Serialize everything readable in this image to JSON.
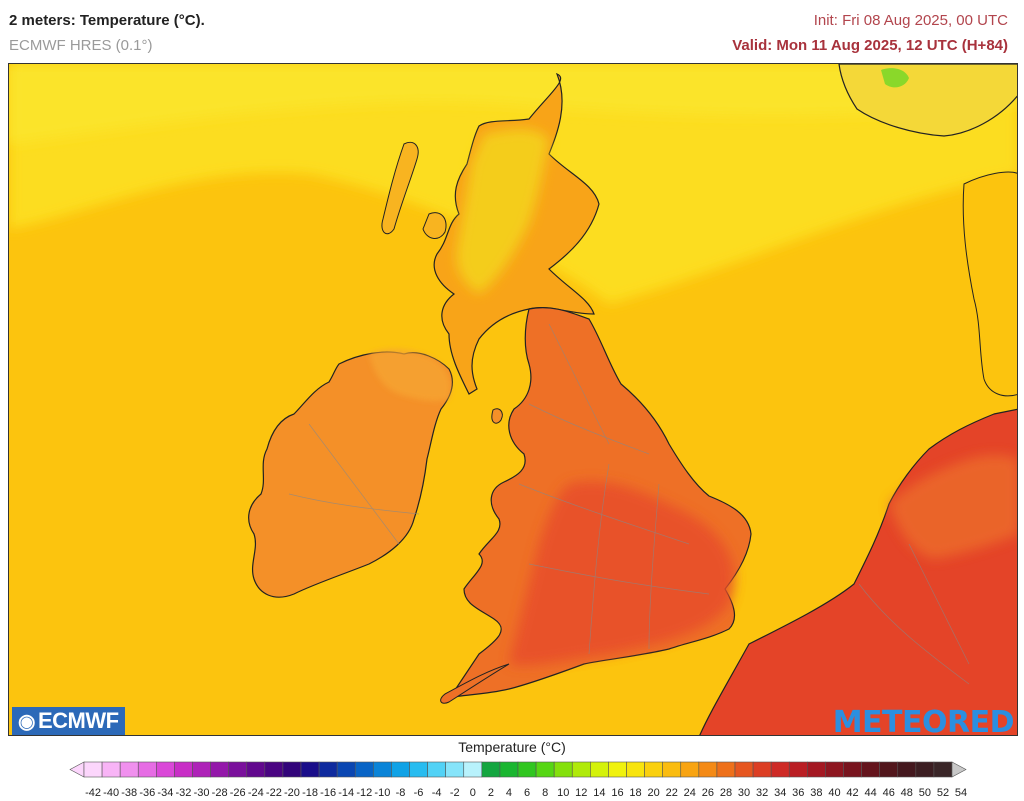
{
  "header": {
    "title": "2 meters: Temperature (°C).",
    "model": "ECMWF HRES (0.1°)",
    "init": "Init: Fri 08 Aug 2025, 00 UTC",
    "valid": "Valid: Mon 11 Aug 2025, 12 UTC (H+84)"
  },
  "logos": {
    "left": "ECMWF",
    "right": "METEORED"
  },
  "legend": {
    "title": "Temperature (°C)",
    "ticks": [
      "-42",
      "-40",
      "-38",
      "-36",
      "-34",
      "-32",
      "-30",
      "-28",
      "-26",
      "-24",
      "-22",
      "-20",
      "-18",
      "-16",
      "-14",
      "-12",
      "-10",
      "-8",
      "-6",
      "-4",
      "-2",
      "0",
      "2",
      "4",
      "6",
      "8",
      "10",
      "12",
      "14",
      "16",
      "18",
      "20",
      "22",
      "24",
      "26",
      "28",
      "30",
      "32",
      "34",
      "36",
      "38",
      "40",
      "42",
      "44",
      "46",
      "48",
      "50",
      "52",
      "54"
    ],
    "colors": [
      "#fcd6fc",
      "#f8b4f6",
      "#f090ee",
      "#e66ce4",
      "#da48d8",
      "#c82ec6",
      "#ae22b8",
      "#9418aa",
      "#7a109c",
      "#62088e",
      "#4a0482",
      "#32047a",
      "#1a0e8a",
      "#0e2a9e",
      "#0a46b2",
      "#0864c6",
      "#0a84d8",
      "#10a2e6",
      "#28bcf0",
      "#52d2f6",
      "#86e4fa",
      "#b8f2fc",
      "#14a640",
      "#1ab630",
      "#30c620",
      "#56d614",
      "#84e00c",
      "#b0ea0a",
      "#d4f20a",
      "#f0f20e",
      "#f8e40e",
      "#fad00e",
      "#fabc10",
      "#f8a412",
      "#f48a16",
      "#ee701a",
      "#e65620",
      "#dc3e24",
      "#ce2a26",
      "#ba1e24",
      "#a41822",
      "#8e1620",
      "#78141e",
      "#64141c",
      "#52161c",
      "#44181e",
      "#3c1e22",
      "#3a2628"
    ]
  },
  "map": {
    "sea_color": "#fcc40e",
    "land_colors": {
      "scotland": "#f8a418",
      "scotland_highland": "#f4d21c",
      "ireland": "#f49028",
      "england": "#ee7026",
      "england_south": "#e8502a",
      "continent": "#e44428",
      "norway": "#f4d838",
      "north_sea": "#fdd020"
    }
  }
}
